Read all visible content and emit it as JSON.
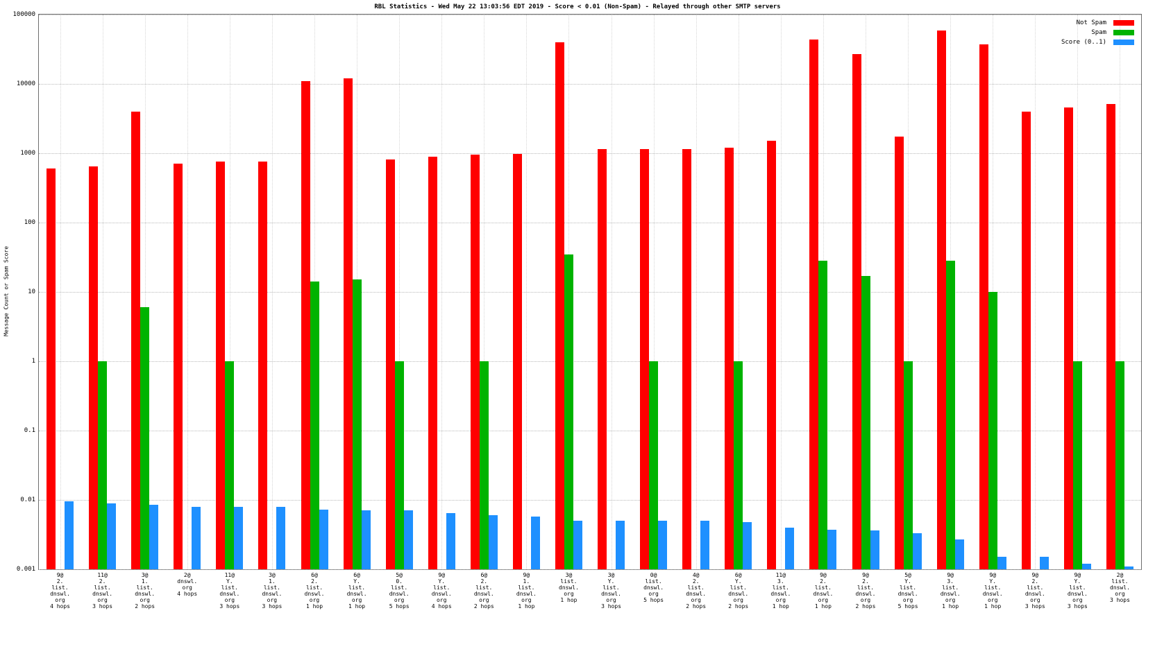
{
  "chart_data": {
    "type": "bar",
    "title": "RBL Statistics - Wed May 22 13:03:56 EDT 2019 - Score < 0.01 (Non-Spam) - Relayed through other SMTP servers",
    "ylabel": "Message Count or Spam Score",
    "xlabel": "",
    "yscale": "log",
    "ylim": [
      0.001,
      100000
    ],
    "grid": true,
    "legend_position": "top-right",
    "yticks": [
      {
        "label": "100000",
        "value": 100000
      },
      {
        "label": "10000",
        "value": 10000
      },
      {
        "label": "1000",
        "value": 1000
      },
      {
        "label": "100",
        "value": 100
      },
      {
        "label": "10",
        "value": 10
      },
      {
        "label": "1",
        "value": 1
      },
      {
        "label": "0.1",
        "value": 0.1
      },
      {
        "label": "0.01",
        "value": 0.01
      },
      {
        "label": "0.001",
        "value": 0.001
      }
    ],
    "categories": [
      "9@\n2.\nlist.\ndnswl.\norg\n4 hops",
      "11@\n2.\nlist.\ndnswl.\norg\n3 hops",
      "3@\n1.\nlist.\ndnswl.\norg\n2 hops",
      "2@\ndnswl.\norg\n4 hops",
      "11@\nY.\nlist.\ndnswl.\norg\n3 hops",
      "3@\n1.\nlist.\ndnswl.\norg\n3 hops",
      "6@\n2.\nlist.\ndnswl.\norg\n1 hop",
      "6@\nY.\nlist.\ndnswl.\norg\n1 hop",
      "5@\n0.\nlist.\ndnswl.\norg\n5 hops",
      "9@\nY.\nlist.\ndnswl.\norg\n4 hops",
      "6@\n2.\nlist.\ndnswl.\norg\n2 hops",
      "9@\n1.\nlist.\ndnswl.\norg\n1 hop",
      "3@\nlist.\ndnswl.\norg\n1 hop",
      "3@\nY.\nlist.\ndnswl.\norg\n3 hops",
      "0@\nlist.\ndnswl.\norg\n5 hops",
      "4@\n2.\nlist.\ndnswl.\norg\n2 hops",
      "6@\nY.\nlist.\ndnswl.\norg\n2 hops",
      "11@\n3.\nlist.\ndnswl.\norg\n1 hop",
      "9@\n2.\nlist.\ndnswl.\norg\n1 hop",
      "9@\n2.\nlist.\ndnswl.\norg\n2 hops",
      "5@\nY.\nlist.\ndnswl.\norg\n5 hops",
      "9@\n3.\nlist.\ndnswl.\norg\n1 hop",
      "9@\nY.\nlist.\ndnswl.\norg\n1 hop",
      "9@\n2.\nlist.\ndnswl.\norg\n3 hops",
      "9@\nY.\nlist.\ndnswl.\norg\n3 hops",
      "2@\nlist.\ndnswl.\norg\n3 hops"
    ],
    "series": [
      {
        "name": "Not Spam",
        "color": "#ff0000",
        "values": [
          600,
          650,
          4000,
          700,
          750,
          750,
          11000,
          12000,
          820,
          900,
          950,
          980,
          40000,
          1150,
          1150,
          1150,
          1200,
          1500,
          44000,
          27000,
          1750,
          59000,
          37000,
          4000,
          4600,
          5100
        ]
      },
      {
        "name": "Spam",
        "color": "#00b300",
        "values": [
          null,
          1,
          6,
          null,
          1,
          null,
          14,
          15,
          1,
          null,
          1,
          null,
          35,
          null,
          1,
          null,
          1,
          null,
          28,
          17,
          1,
          28,
          10,
          null,
          1,
          1
        ]
      },
      {
        "name": "Score (0..1)",
        "color": "#1e90ff",
        "values": [
          0.0095,
          0.009,
          0.0085,
          0.008,
          0.008,
          0.008,
          0.0073,
          0.007,
          0.007,
          0.0065,
          0.006,
          0.0058,
          0.005,
          0.005,
          0.005,
          0.005,
          0.0048,
          0.004,
          0.0037,
          0.0036,
          0.0033,
          0.0027,
          0.0015,
          0.0015,
          0.0012,
          0.0011
        ]
      }
    ]
  }
}
